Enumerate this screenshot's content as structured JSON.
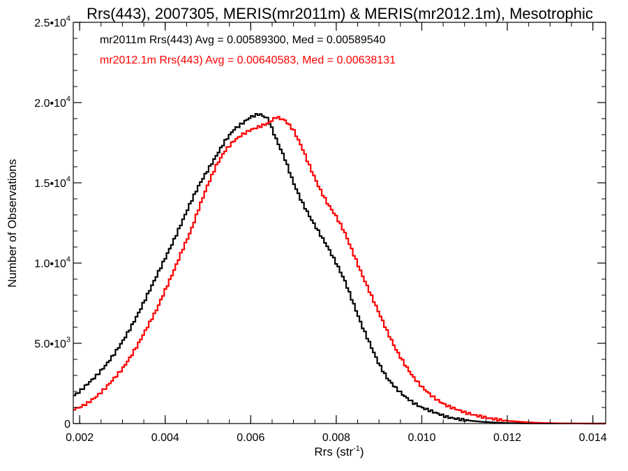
{
  "chart_data": {
    "type": "line",
    "title": "Rrs(443), 2007305, MERIS(mr2011m) & MERIS(mr2012.1m), Mesotrophic",
    "xlabel": {
      "base": "Rrs (str",
      "sup": "-1",
      "close": ")"
    },
    "ylabel": "Number of Observations",
    "xlim": [
      0.00185,
      0.0143
    ],
    "ylim": [
      0,
      25000
    ],
    "x_ticks": [
      0.002,
      0.004,
      0.006,
      0.008,
      0.01,
      0.012,
      0.014
    ],
    "x_tick_labels": [
      "0.002",
      "0.004",
      "0.006",
      "0.008",
      "0.010",
      "0.012",
      "0.014"
    ],
    "y_ticks": [
      0,
      5000,
      10000,
      15000,
      20000,
      25000
    ],
    "y_tick_labels": [
      {
        "mant": "0",
        "sup": ""
      },
      {
        "mant": "5.0•10",
        "sup": "3"
      },
      {
        "mant": "1.0•10",
        "sup": "4"
      },
      {
        "mant": "1.5•10",
        "sup": "4"
      },
      {
        "mant": "2.0•10",
        "sup": "4"
      },
      {
        "mant": "2.5•10",
        "sup": "4"
      }
    ],
    "annotations": [
      {
        "text": "mr2011m Rrs(443) Avg = 0.00589300, Med = 0.00589540",
        "color": "#000000"
      },
      {
        "text": "mr2012.1m Rrs(443) Avg = 0.00640583, Med = 0.00638131",
        "color": "#ff0000"
      }
    ],
    "series": [
      {
        "color": "#000000",
        "style": "step",
        "x": [
          0.00185,
          0.002,
          0.0022,
          0.0024,
          0.0026,
          0.0028,
          0.003,
          0.0032,
          0.0034,
          0.0036,
          0.0038,
          0.004,
          0.0042,
          0.0044,
          0.0046,
          0.0048,
          0.005,
          0.0052,
          0.0054,
          0.0056,
          0.0058,
          0.006,
          0.0062,
          0.0064,
          0.0066,
          0.0068,
          0.007,
          0.0072,
          0.0074,
          0.0076,
          0.0078,
          0.008,
          0.0082,
          0.0084,
          0.0086,
          0.0088,
          0.009,
          0.0092,
          0.0094,
          0.0096,
          0.0098,
          0.01,
          0.0102,
          0.0104,
          0.0106,
          0.0108,
          0.011,
          0.0112,
          0.0114,
          0.0116,
          0.0118,
          0.012,
          0.0124,
          0.0128,
          0.0132,
          0.0136,
          0.014,
          0.0143
        ],
        "values": [
          1700,
          2000,
          2500,
          3000,
          3600,
          4300,
          5100,
          6000,
          7000,
          8100,
          9200,
          10300,
          11400,
          12600,
          13800,
          14900,
          15800,
          16700,
          17600,
          18300,
          18700,
          19100,
          19300,
          19000,
          17700,
          16500,
          15000,
          13800,
          12800,
          11900,
          11000,
          10000,
          8900,
          7500,
          6100,
          4900,
          3700,
          2800,
          2200,
          1700,
          1300,
          1000,
          800,
          600,
          400,
          300,
          220,
          160,
          110,
          80,
          50,
          30,
          15,
          8,
          4,
          2,
          1,
          0
        ]
      },
      {
        "color": "#ff0000",
        "style": "step",
        "x": [
          0.00185,
          0.002,
          0.0022,
          0.0024,
          0.0026,
          0.0028,
          0.003,
          0.0032,
          0.0034,
          0.0036,
          0.0038,
          0.004,
          0.0042,
          0.0044,
          0.0046,
          0.0048,
          0.005,
          0.0052,
          0.0054,
          0.0056,
          0.0058,
          0.006,
          0.0062,
          0.0064,
          0.0066,
          0.0068,
          0.007,
          0.0072,
          0.0074,
          0.0076,
          0.0078,
          0.008,
          0.0082,
          0.0084,
          0.0086,
          0.0088,
          0.009,
          0.0092,
          0.0094,
          0.0096,
          0.0098,
          0.01,
          0.0102,
          0.0104,
          0.0106,
          0.0108,
          0.011,
          0.0112,
          0.0114,
          0.0116,
          0.0118,
          0.012,
          0.0124,
          0.0128,
          0.0132,
          0.0136,
          0.014,
          0.0143
        ],
        "values": [
          900,
          1000,
          1300,
          1700,
          2200,
          2800,
          3400,
          4200,
          5100,
          6100,
          7100,
          8300,
          9500,
          10800,
          12000,
          13500,
          14900,
          16100,
          17000,
          17600,
          18000,
          18300,
          18500,
          18700,
          19100,
          18900,
          18300,
          17200,
          15900,
          14700,
          13700,
          12900,
          11900,
          10600,
          9300,
          8100,
          6900,
          5700,
          4600,
          3700,
          2900,
          2300,
          1800,
          1400,
          1100,
          900,
          700,
          550,
          430,
          320,
          240,
          170,
          90,
          40,
          15,
          5,
          1,
          0
        ]
      }
    ]
  }
}
